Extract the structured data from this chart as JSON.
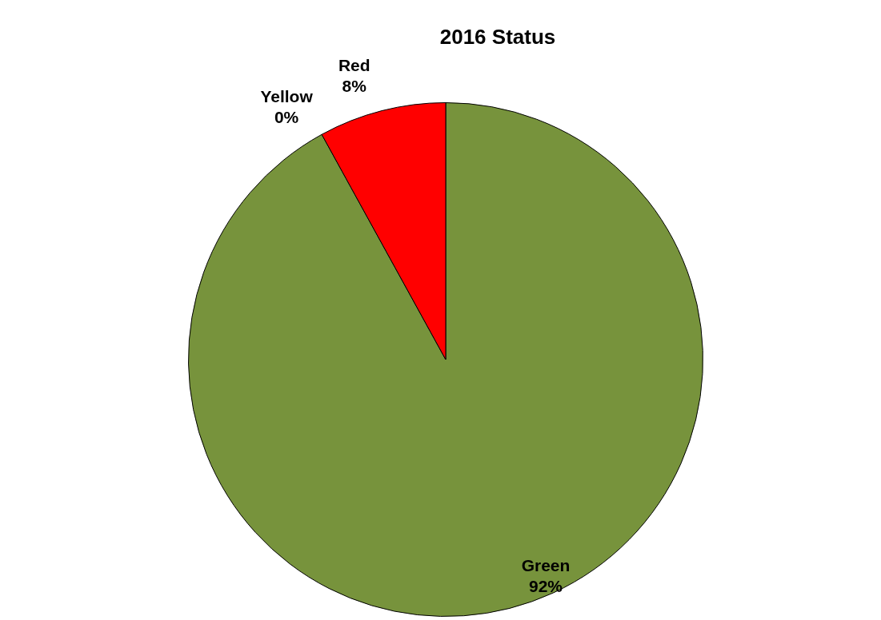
{
  "chart_data": {
    "type": "pie",
    "title": "2016 Status",
    "categories": [
      "Green",
      "Yellow",
      "Red"
    ],
    "values": [
      92,
      0,
      8
    ],
    "value_labels": [
      "92%",
      "0%",
      "8%"
    ],
    "colors": [
      "#77933c",
      "#ffff00",
      "#ff0000"
    ],
    "legend": false
  }
}
